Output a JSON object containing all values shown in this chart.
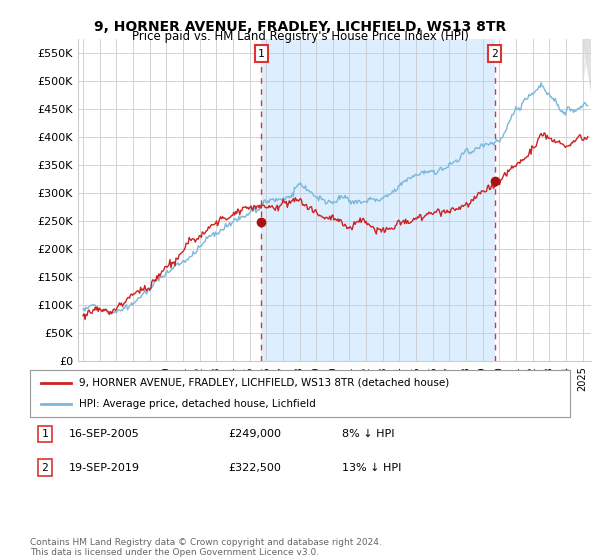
{
  "title": "9, HORNER AVENUE, FRADLEY, LICHFIELD, WS13 8TR",
  "subtitle": "Price paid vs. HM Land Registry's House Price Index (HPI)",
  "legend_line1": "9, HORNER AVENUE, FRADLEY, LICHFIELD, WS13 8TR (detached house)",
  "legend_line2": "HPI: Average price, detached house, Lichfield",
  "annotation1_label": "1",
  "annotation1_date": "16-SEP-2005",
  "annotation1_price": "£249,000",
  "annotation1_hpi": "8% ↓ HPI",
  "annotation2_label": "2",
  "annotation2_date": "19-SEP-2019",
  "annotation2_price": "£322,500",
  "annotation2_hpi": "13% ↓ HPI",
  "footer": "Contains HM Land Registry data © Crown copyright and database right 2024.\nThis data is licensed under the Open Government Licence v3.0.",
  "hpi_color": "#7ab8d9",
  "sale_color": "#cc2222",
  "marker_color": "#aa1111",
  "vline_color": "#dd3333",
  "shade_color": "#ddeeff",
  "grid_color": "#cccccc",
  "bg_color": "#ffffff",
  "ylim": [
    0,
    575000
  ],
  "yticks": [
    0,
    50000,
    100000,
    150000,
    200000,
    250000,
    300000,
    350000,
    400000,
    450000,
    500000,
    550000
  ],
  "xlim_start": 1994.7,
  "xlim_end": 2025.5,
  "sale1_x": 2005.71,
  "sale1_y": 249000,
  "sale2_x": 2019.72,
  "sale2_y": 322500
}
